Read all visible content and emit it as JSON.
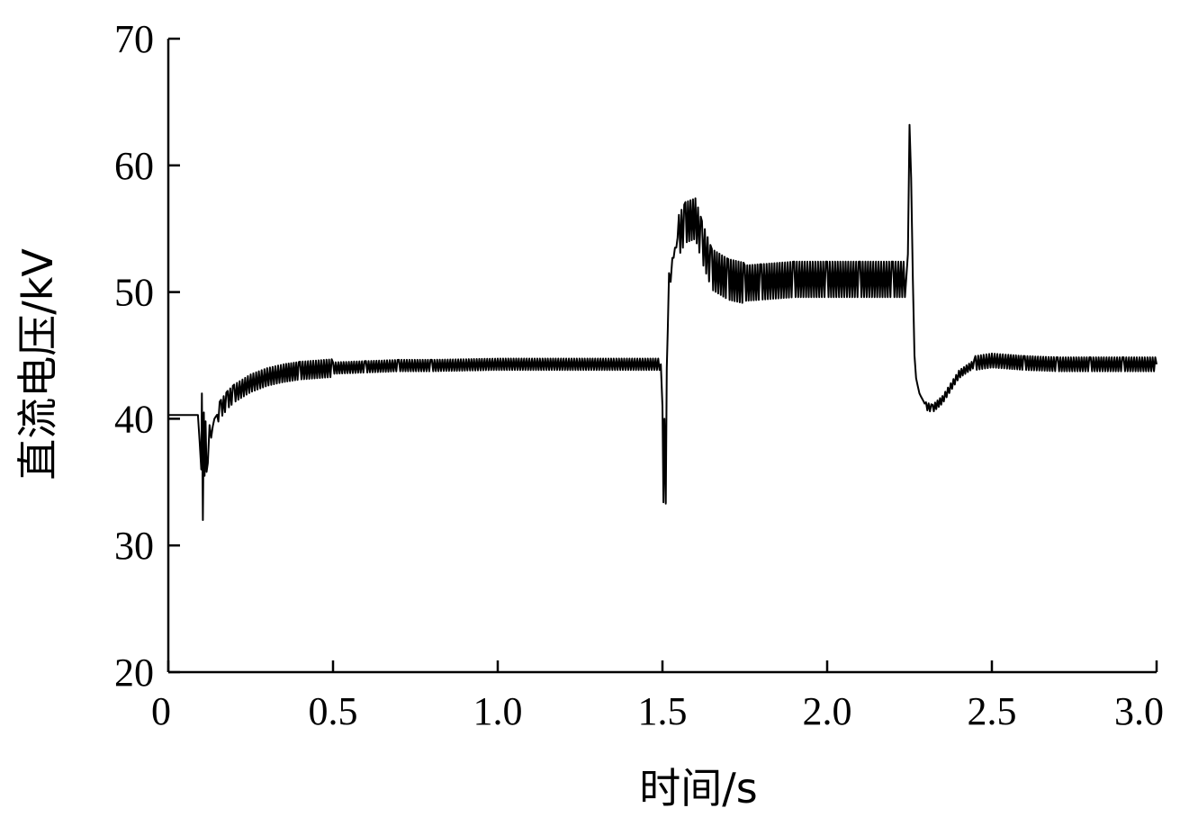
{
  "chart_data": {
    "type": "line",
    "title": "",
    "xlabel": "时间/s",
    "ylabel": "直流电压/kV",
    "xlim": [
      0,
      3.0
    ],
    "ylim": [
      20,
      70
    ],
    "xticks": [
      0,
      0.5,
      1.0,
      1.5,
      2.0,
      2.5,
      3.0
    ],
    "xtick_labels": [
      "0",
      "0.5",
      "1.0",
      "1.5",
      "2.0",
      "2.5",
      "3.0"
    ],
    "yticks": [
      20,
      30,
      40,
      50,
      60,
      70
    ],
    "ytick_labels": [
      "20",
      "30",
      "40",
      "50",
      "60",
      "70"
    ],
    "grid": false,
    "series": [
      {
        "color": "#000000",
        "x": [
          0.0,
          0.09,
          0.095,
          0.1,
          0.102,
          0.105,
          0.108,
          0.11,
          0.113,
          0.116,
          0.12,
          0.125,
          0.13,
          0.135,
          0.14,
          0.16,
          0.18,
          0.2,
          0.25,
          0.3,
          0.35,
          0.4,
          0.5,
          0.6,
          0.7,
          0.8,
          1.0,
          1.2,
          1.4,
          1.495,
          1.5,
          1.503,
          1.506,
          1.51,
          1.513,
          1.516,
          1.52,
          1.525,
          1.53,
          1.55,
          1.57,
          1.6,
          1.62,
          1.65,
          1.7,
          1.75,
          1.8,
          1.9,
          2.0,
          2.1,
          2.2,
          2.24,
          2.245,
          2.25,
          2.255,
          2.26,
          2.265,
          2.27,
          2.28,
          2.3,
          2.32,
          2.35,
          2.4,
          2.45,
          2.5,
          2.55,
          2.6,
          2.7,
          2.8,
          2.9,
          3.0
        ],
        "y": [
          40.3,
          40.3,
          38.2,
          36.0,
          42.0,
          32.0,
          40.5,
          35.5,
          39.8,
          35.8,
          36.5,
          39.5,
          38.5,
          39.4,
          40.0,
          40.8,
          41.5,
          42.0,
          42.8,
          43.3,
          43.6,
          43.8,
          44.0,
          44.1,
          44.2,
          44.2,
          44.3,
          44.3,
          44.3,
          44.3,
          41.0,
          33.4,
          40.0,
          33.3,
          44.0,
          47.0,
          51.5,
          50.8,
          52.5,
          54.5,
          55.5,
          55.8,
          54.0,
          51.8,
          51.0,
          50.7,
          50.8,
          51.0,
          51.0,
          51.0,
          51.0,
          51.0,
          53.0,
          63.2,
          59.0,
          51.0,
          45.0,
          43.2,
          42.0,
          41.0,
          40.8,
          41.5,
          43.5,
          44.4,
          44.6,
          44.5,
          44.4,
          44.3,
          44.3,
          44.3,
          44.3
        ]
      }
    ]
  }
}
